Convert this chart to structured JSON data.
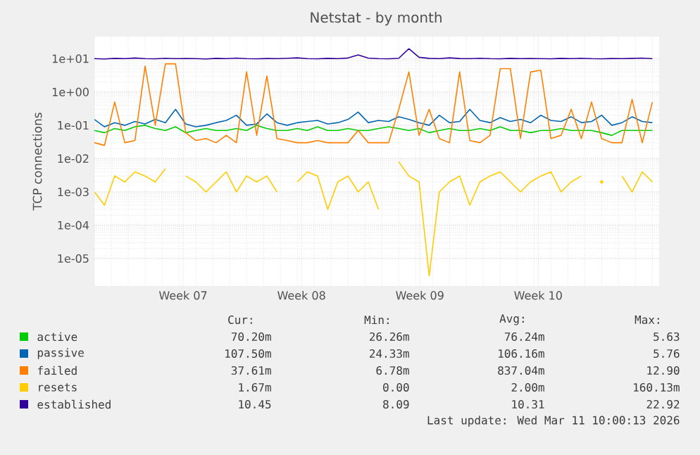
{
  "chart_data": {
    "type": "line",
    "title": "Netstat - by month",
    "ylabel": "TCP connections",
    "log": true,
    "grid": true,
    "legend": "bottom",
    "marker": "none",
    "xlim": [
      "2026-02-07T06:00",
      "2026-03-12T15:36"
    ],
    "ylim": [
      1.5e-06,
      46
    ],
    "xticks": [
      {
        "value": "2026-02-12T12:00",
        "label": "Week 07"
      },
      {
        "value": "2026-02-19T12:00",
        "label": "Week 08"
      },
      {
        "value": "2026-02-26T12:00",
        "label": "Week 09"
      },
      {
        "value": "2026-03-05T12:00",
        "label": "Week 10"
      }
    ],
    "yticks": [
      {
        "value": 1e-05,
        "label": "1e-05"
      },
      {
        "value": 0.0001,
        "label": "1e-04"
      },
      {
        "value": 0.001,
        "label": "1e-03"
      },
      {
        "value": 0.01,
        "label": "1e-02"
      },
      {
        "value": 0.1,
        "label": "1e-01"
      },
      {
        "value": 1,
        "label": "1e+00"
      },
      {
        "value": 10,
        "label": "1e+01"
      }
    ],
    "x": [
      "2026-02-07T06:00",
      "2026-02-07T20:24",
      "2026-02-08T10:48",
      "2026-02-09T01:12",
      "2026-02-09T15:36",
      "2026-02-10T06:00",
      "2026-02-10T20:24",
      "2026-02-11T10:48",
      "2026-02-12T01:12",
      "2026-02-12T15:36",
      "2026-02-13T06:00",
      "2026-02-13T20:24",
      "2026-02-14T10:48",
      "2026-02-15T01:12",
      "2026-02-15T15:36",
      "2026-02-16T06:00",
      "2026-02-16T20:24",
      "2026-02-17T10:48",
      "2026-02-18T01:12",
      "2026-02-18T15:36",
      "2026-02-19T06:00",
      "2026-02-19T20:24",
      "2026-02-20T10:48",
      "2026-02-21T01:12",
      "2026-02-21T15:36",
      "2026-02-22T06:00",
      "2026-02-22T20:24",
      "2026-02-23T10:48",
      "2026-02-24T01:12",
      "2026-02-24T15:36",
      "2026-02-25T06:00",
      "2026-02-25T20:24",
      "2026-02-26T10:48",
      "2026-02-27T01:12",
      "2026-02-27T15:36",
      "2026-02-28T06:00",
      "2026-02-28T20:24",
      "2026-03-01T10:48",
      "2026-03-02T01:12",
      "2026-03-02T15:36",
      "2026-03-03T06:00",
      "2026-03-03T20:24",
      "2026-03-04T10:48",
      "2026-03-05T01:12",
      "2026-03-05T15:36",
      "2026-03-06T06:00",
      "2026-03-06T20:24",
      "2026-03-07T10:48",
      "2026-03-08T01:12",
      "2026-03-08T15:36",
      "2026-03-09T06:00",
      "2026-03-09T20:24",
      "2026-03-10T10:48",
      "2026-03-11T01:12",
      "2026-03-11T15:36",
      "2026-03-12T06:00"
    ],
    "series": [
      {
        "name": "active",
        "color": "#00cc00",
        "values": [
          0.07,
          0.06,
          0.08,
          0.07,
          0.09,
          0.1,
          0.08,
          0.07,
          0.09,
          0.06,
          0.07,
          0.08,
          0.07,
          0.07,
          0.08,
          0.07,
          0.1,
          0.08,
          0.07,
          0.07,
          0.08,
          0.07,
          0.09,
          0.07,
          0.07,
          0.08,
          0.07,
          0.07,
          0.08,
          0.09,
          0.08,
          0.07,
          0.08,
          0.06,
          0.07,
          0.08,
          0.07,
          0.07,
          0.08,
          0.07,
          0.09,
          0.07,
          0.07,
          0.06,
          0.07,
          0.07,
          0.08,
          0.07,
          0.07,
          0.07,
          0.06,
          0.05,
          0.07,
          0.07,
          0.07,
          0.07
        ]
      },
      {
        "name": "passive",
        "color": "#0066b3",
        "values": [
          0.15,
          0.09,
          0.12,
          0.1,
          0.13,
          0.11,
          0.15,
          0.12,
          0.3,
          0.11,
          0.09,
          0.1,
          0.12,
          0.14,
          0.2,
          0.1,
          0.11,
          0.22,
          0.12,
          0.1,
          0.12,
          0.13,
          0.14,
          0.11,
          0.12,
          0.15,
          0.25,
          0.12,
          0.14,
          0.13,
          0.18,
          0.15,
          0.12,
          0.1,
          0.2,
          0.12,
          0.13,
          0.3,
          0.14,
          0.12,
          0.17,
          0.13,
          0.15,
          0.12,
          0.2,
          0.14,
          0.13,
          0.18,
          0.12,
          0.13,
          0.2,
          0.1,
          0.12,
          0.18,
          0.13,
          0.12
        ]
      },
      {
        "name": "failed",
        "color": "#ff8000",
        "values": [
          0.03,
          0.025,
          0.5,
          0.03,
          0.035,
          6,
          0.1,
          7,
          7,
          0.06,
          0.035,
          0.04,
          0.03,
          0.05,
          0.03,
          4,
          0.05,
          3,
          0.04,
          0.035,
          0.03,
          0.03,
          0.035,
          0.03,
          0.03,
          0.03,
          0.07,
          0.03,
          0.03,
          0.03,
          0.3,
          4,
          0.05,
          0.3,
          0.04,
          0.03,
          4,
          0.035,
          0.03,
          0.05,
          5,
          5,
          0.04,
          4,
          4.5,
          0.04,
          0.05,
          0.3,
          0.04,
          0.5,
          0.04,
          0.03,
          0.03,
          0.6,
          0.03,
          0.5
        ]
      },
      {
        "name": "resets",
        "color": "#ffcc00",
        "values": [
          0.001,
          0.0004,
          0.003,
          0.002,
          0.004,
          0.003,
          0.002,
          0.005,
          null,
          0.003,
          0.002,
          0.001,
          0.002,
          0.004,
          0.001,
          0.003,
          0.002,
          0.003,
          0.001,
          null,
          0.002,
          0.004,
          0.003,
          0.0003,
          0.002,
          0.003,
          0.001,
          0.002,
          0.0003,
          null,
          0.008,
          0.003,
          0.002,
          3e-06,
          0.001,
          0.002,
          0.003,
          0.0004,
          0.002,
          0.003,
          0.004,
          0.002,
          0.001,
          0.002,
          0.003,
          0.004,
          0.001,
          0.002,
          0.003,
          null,
          0.002,
          null,
          0.003,
          0.001,
          0.004,
          0.002
        ]
      },
      {
        "name": "established",
        "color": "#330099",
        "values": [
          10,
          9.8,
          10.2,
          10,
          10.5,
          10,
          9.9,
          10.3,
          10,
          10.1,
          10,
          9.8,
          10.2,
          10,
          10.4,
          10,
          9.9,
          10.1,
          10,
          10.3,
          10.6,
          10,
          9.9,
          10.2,
          10,
          10.5,
          13,
          10.4,
          10,
          9.9,
          10.3,
          20,
          11,
          10.2,
          10,
          10.6,
          10.1,
          10,
          10.3,
          10,
          9.9,
          10.2,
          10,
          10.1,
          10,
          9.9,
          10.2,
          10,
          10.3,
          10,
          9.9,
          10.1,
          10,
          10.2,
          10.4,
          10
        ]
      }
    ],
    "annotations": [
      "Cur:",
      "Min:",
      "Avg:",
      "Max:",
      "70.20m",
      "26.26m",
      "76.24m",
      "5.63",
      "107.50m",
      "24.33m",
      "106.16m",
      "5.76",
      "37.61m",
      "6.78m",
      "837.04m",
      "12.90",
      "1.67m",
      "0.00",
      "2.00m",
      "160.13m",
      "10.45",
      "8.09",
      "10.31",
      "22.92",
      "Last update: Wed Mar 11 10:00:13 2026"
    ]
  }
}
